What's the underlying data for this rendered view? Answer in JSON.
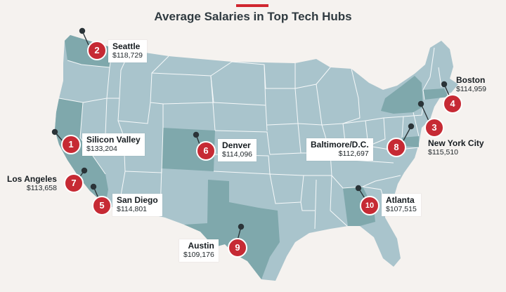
{
  "title": "Average Salaries in Top Tech Hubs",
  "colors": {
    "accent": "#c62a34",
    "state": "#a9c4cc",
    "highlight": "#7fa8ac",
    "border": "#ffffff",
    "background": "#f5f2ef"
  },
  "hubs": [
    {
      "rank": "1",
      "city": "Silicon Valley",
      "salary": "$133,204"
    },
    {
      "rank": "2",
      "city": "Seattle",
      "salary": "$118,729"
    },
    {
      "rank": "3",
      "city": "New York City",
      "salary": "$115,510"
    },
    {
      "rank": "4",
      "city": "Boston",
      "salary": "$114,959"
    },
    {
      "rank": "5",
      "city": "San Diego",
      "salary": "$114,801"
    },
    {
      "rank": "6",
      "city": "Denver",
      "salary": "$114,096"
    },
    {
      "rank": "7",
      "city": "Los Angeles",
      "salary": "$113,658"
    },
    {
      "rank": "8",
      "city": "Baltimore/D.C.",
      "salary": "$112,697"
    },
    {
      "rank": "9",
      "city": "Austin",
      "salary": "$109,176"
    },
    {
      "rank": "10",
      "city": "Atlanta",
      "salary": "$107,515"
    }
  ]
}
